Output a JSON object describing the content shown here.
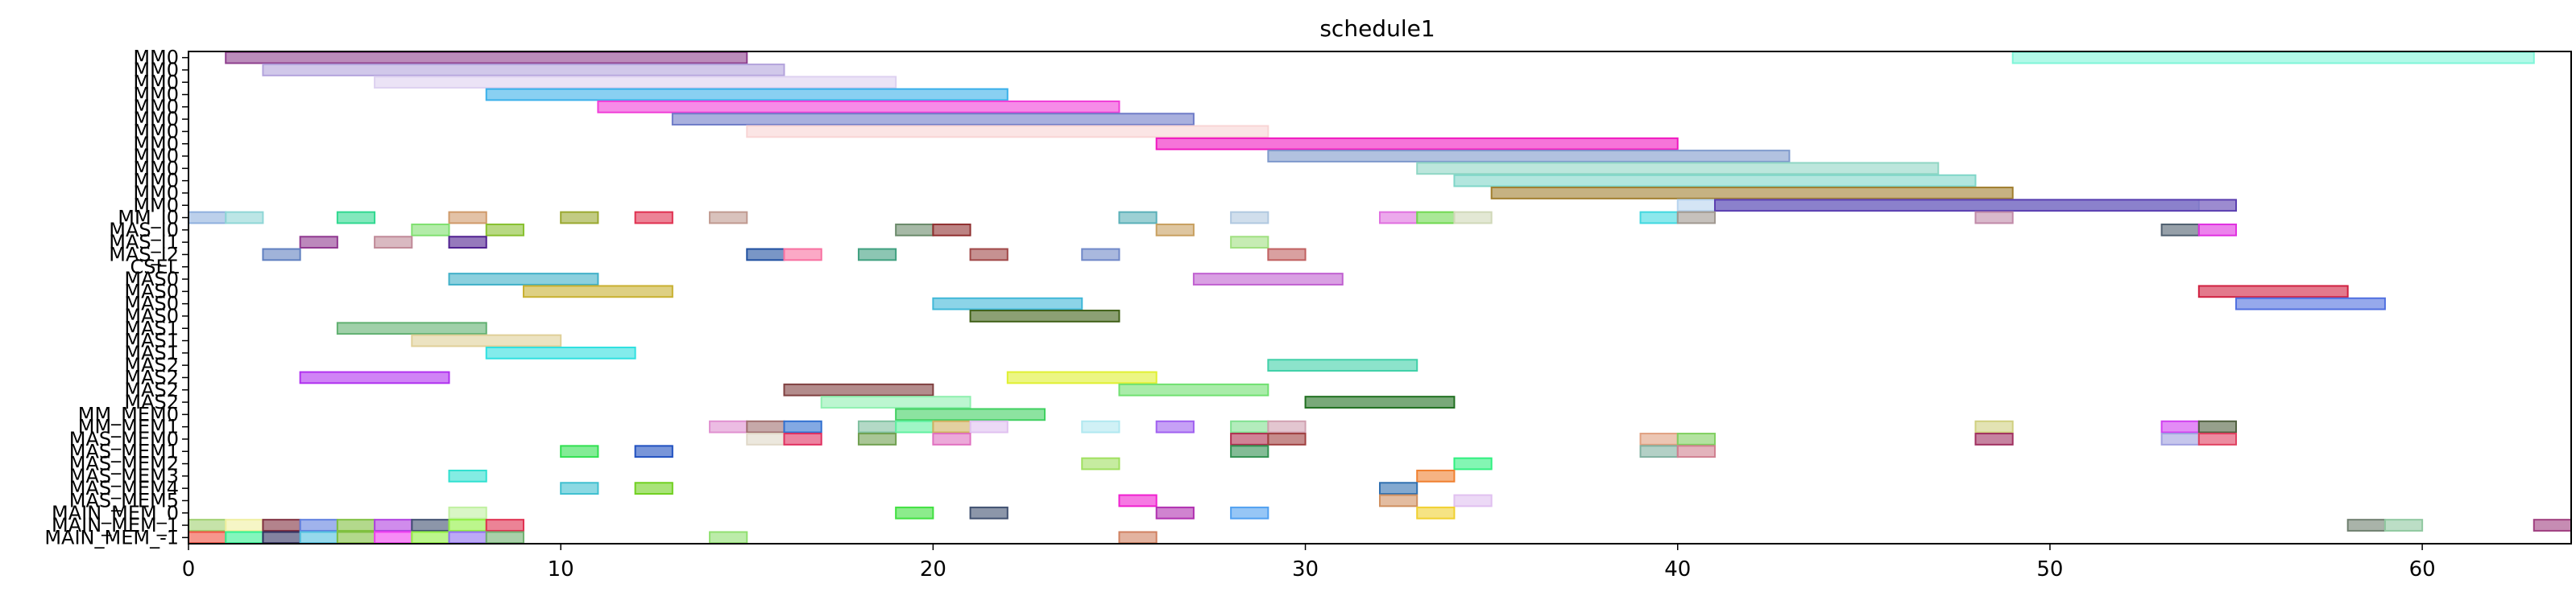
{
  "chart_data": {
    "type": "gantt",
    "title": "schedule1",
    "xlabel": "",
    "ylabel": "",
    "xlim": [
      0,
      64
    ],
    "grid": false,
    "x_ticks": [
      0,
      10,
      20,
      30,
      40,
      50,
      60
    ],
    "rows": [
      "MM0",
      "MM0",
      "MM0",
      "MM0",
      "MM0",
      "MM0",
      "MM0",
      "MM0",
      "MM0",
      "MM0",
      "MM0",
      "MM0",
      "MM0",
      "MM_I0",
      "MAS_I0",
      "MAS_I1",
      "MAS_I2",
      "CSEL",
      "MAS0",
      "MAS0",
      "MAS0",
      "MAS0",
      "MAS1",
      "MAS1",
      "MAS1",
      "MAS2",
      "MAS2",
      "MAS2",
      "MAS2",
      "MM_MEM0",
      "MM_MEM1",
      "MAS_MEM0",
      "MAS_MEM1",
      "MAS_MEM2",
      "MAS_MEM3",
      "MAS_MEM4",
      "MAS_MEM5",
      "MAIN_MEM_0",
      "MAIN_MEM_1",
      "MAIN_MEM_-1"
    ],
    "bars": [
      {
        "row": 0,
        "start": 1,
        "end": 15,
        "color": "#8e3f8e"
      },
      {
        "row": 0,
        "start": 49,
        "end": 63,
        "color": "#7ff5d8"
      },
      {
        "row": 1,
        "start": 2,
        "end": 16,
        "color": "#b3a3dc"
      },
      {
        "row": 2,
        "start": 5,
        "end": 19,
        "color": "#ddd1f0"
      },
      {
        "row": 3,
        "start": 8,
        "end": 22,
        "color": "#3ab0ea"
      },
      {
        "row": 4,
        "start": 11,
        "end": 25,
        "color": "#f03ed8"
      },
      {
        "row": 5,
        "start": 13,
        "end": 27,
        "color": "#6f7cc8"
      },
      {
        "row": 6,
        "start": 15,
        "end": 29,
        "color": "#f8d4d4"
      },
      {
        "row": 7,
        "start": 26,
        "end": 40,
        "color": "#f018c0"
      },
      {
        "row": 8,
        "start": 29,
        "end": 43,
        "color": "#7f9acc"
      },
      {
        "row": 9,
        "start": 33,
        "end": 47,
        "color": "#8fd6c4"
      },
      {
        "row": 10,
        "start": 34,
        "end": 48,
        "color": "#7fd6c8"
      },
      {
        "row": 11,
        "start": 35,
        "end": 49,
        "color": "#a07e2e"
      },
      {
        "row": 12,
        "start": 40,
        "end": 54,
        "color": "#b8d4ee"
      },
      {
        "row": 12,
        "start": 41,
        "end": 55,
        "color": "#5a3eb0"
      },
      {
        "row": 13,
        "start": 0,
        "end": 1,
        "color": "#8fb0de"
      },
      {
        "row": 13,
        "start": 1,
        "end": 2,
        "color": "#8fd6d6"
      },
      {
        "row": 13,
        "start": 4,
        "end": 5,
        "color": "#30d890"
      },
      {
        "row": 13,
        "start": 7,
        "end": 8,
        "color": "#d09a6a"
      },
      {
        "row": 13,
        "start": 10,
        "end": 11,
        "color": "#9aa830"
      },
      {
        "row": 13,
        "start": 12,
        "end": 13,
        "color": "#e03050"
      },
      {
        "row": 13,
        "start": 14,
        "end": 15,
        "color": "#c09a90"
      },
      {
        "row": 13,
        "start": 25,
        "end": 26,
        "color": "#5ab0b8"
      },
      {
        "row": 13,
        "start": 28,
        "end": 29,
        "color": "#b0c8e0"
      },
      {
        "row": 13,
        "start": 32,
        "end": 33,
        "color": "#e070e0"
      },
      {
        "row": 13,
        "start": 33,
        "end": 34,
        "color": "#70d850"
      },
      {
        "row": 13,
        "start": 34,
        "end": 35,
        "color": "#d0d8b8"
      },
      {
        "row": 13,
        "start": 39,
        "end": 40,
        "color": "#40d8e0"
      },
      {
        "row": 13,
        "start": 40,
        "end": 41,
        "color": "#a09890"
      },
      {
        "row": 13,
        "start": 48,
        "end": 49,
        "color": "#c08aa8"
      },
      {
        "row": 14,
        "start": 6,
        "end": 7,
        "color": "#80e070"
      },
      {
        "row": 14,
        "start": 8,
        "end": 9,
        "color": "#88c030"
      },
      {
        "row": 14,
        "start": 19,
        "end": 20,
        "color": "#6a8a6a"
      },
      {
        "row": 14,
        "start": 20,
        "end": 21,
        "color": "#903030"
      },
      {
        "row": 14,
        "start": 26,
        "end": 27,
        "color": "#c8a060"
      },
      {
        "row": 14,
        "start": 53,
        "end": 54,
        "color": "#506070"
      },
      {
        "row": 14,
        "start": 54,
        "end": 55,
        "color": "#e030e0"
      },
      {
        "row": 15,
        "start": 3,
        "end": 4,
        "color": "#903890"
      },
      {
        "row": 15,
        "start": 5,
        "end": 6,
        "color": "#c08a98"
      },
      {
        "row": 15,
        "start": 7,
        "end": 8,
        "color": "#502090"
      },
      {
        "row": 15,
        "start": 28,
        "end": 29,
        "color": "#a0e080"
      },
      {
        "row": 16,
        "start": 2,
        "end": 3,
        "color": "#6080c0"
      },
      {
        "row": 16,
        "start": 15,
        "end": 16,
        "color": "#2050a0"
      },
      {
        "row": 16,
        "start": 16,
        "end": 17,
        "color": "#f870a0"
      },
      {
        "row": 16,
        "start": 18,
        "end": 19,
        "color": "#40a080"
      },
      {
        "row": 16,
        "start": 21,
        "end": 22,
        "color": "#a04848"
      },
      {
        "row": 16,
        "start": 24,
        "end": 25,
        "color": "#7088c8"
      },
      {
        "row": 16,
        "start": 29,
        "end": 30,
        "color": "#c06060"
      },
      {
        "row": 18,
        "start": 7,
        "end": 11,
        "color": "#40b0c8"
      },
      {
        "row": 18,
        "start": 27,
        "end": 31,
        "color": "#c060d0"
      },
      {
        "row": 19,
        "start": 9,
        "end": 13,
        "color": "#c8b030"
      },
      {
        "row": 19,
        "start": 54,
        "end": 58,
        "color": "#d02040"
      },
      {
        "row": 20,
        "start": 20,
        "end": 24,
        "color": "#40b8d8"
      },
      {
        "row": 20,
        "start": 55,
        "end": 59,
        "color": "#5070e0"
      },
      {
        "row": 21,
        "start": 21,
        "end": 25,
        "color": "#406018"
      },
      {
        "row": 22,
        "start": 4,
        "end": 8,
        "color": "#60b070"
      },
      {
        "row": 23,
        "start": 6,
        "end": 10,
        "color": "#e0d098"
      },
      {
        "row": 24,
        "start": 8,
        "end": 12,
        "color": "#30e0e0"
      },
      {
        "row": 25,
        "start": 29,
        "end": 33,
        "color": "#40d0a8"
      },
      {
        "row": 26,
        "start": 3,
        "end": 7,
        "color": "#b030f0"
      },
      {
        "row": 26,
        "start": 22,
        "end": 26,
        "color": "#e0f030"
      },
      {
        "row": 27,
        "start": 16,
        "end": 20,
        "color": "#804040"
      },
      {
        "row": 27,
        "start": 25,
        "end": 29,
        "color": "#70e070"
      },
      {
        "row": 28,
        "start": 17,
        "end": 21,
        "color": "#90f0b0"
      },
      {
        "row": 28,
        "start": 30,
        "end": 34,
        "color": "#207020"
      },
      {
        "row": 29,
        "start": 19,
        "end": 23,
        "color": "#40d060"
      },
      {
        "row": 30,
        "start": 14,
        "end": 15,
        "color": "#e090d0"
      },
      {
        "row": 30,
        "start": 15,
        "end": 16,
        "color": "#a07070"
      },
      {
        "row": 30,
        "start": 16,
        "end": 17,
        "color": "#3070d0"
      },
      {
        "row": 30,
        "start": 18,
        "end": 19,
        "color": "#80c0a0"
      },
      {
        "row": 30,
        "start": 19,
        "end": 20,
        "color": "#60f0a0"
      },
      {
        "row": 30,
        "start": 20,
        "end": 21,
        "color": "#d0b060"
      },
      {
        "row": 30,
        "start": 21,
        "end": 22,
        "color": "#e0c0f0"
      },
      {
        "row": 30,
        "start": 24,
        "end": 25,
        "color": "#b0e8f0"
      },
      {
        "row": 30,
        "start": 26,
        "end": 27,
        "color": "#a060f0"
      },
      {
        "row": 30,
        "start": 28,
        "end": 29,
        "color": "#80e090"
      },
      {
        "row": 30,
        "start": 29,
        "end": 30,
        "color": "#d0a0b0"
      },
      {
        "row": 30,
        "start": 48,
        "end": 49,
        "color": "#d0d080"
      },
      {
        "row": 30,
        "start": 53,
        "end": 54,
        "color": "#d040f0"
      },
      {
        "row": 30,
        "start": 54,
        "end": 55,
        "color": "#506040"
      },
      {
        "row": 31,
        "start": 15,
        "end": 16,
        "color": "#e0d8c8"
      },
      {
        "row": 31,
        "start": 16,
        "end": 17,
        "color": "#e03060"
      },
      {
        "row": 31,
        "start": 18,
        "end": 19,
        "color": "#70a050"
      },
      {
        "row": 31,
        "start": 20,
        "end": 21,
        "color": "#e070c0"
      },
      {
        "row": 31,
        "start": 28,
        "end": 29,
        "color": "#b03050"
      },
      {
        "row": 31,
        "start": 29,
        "end": 30,
        "color": "#a04040"
      },
      {
        "row": 31,
        "start": 39,
        "end": 40,
        "color": "#e0a080"
      },
      {
        "row": 31,
        "start": 40,
        "end": 41,
        "color": "#80d060"
      },
      {
        "row": 31,
        "start": 48,
        "end": 49,
        "color": "#a03060"
      },
      {
        "row": 31,
        "start": 53,
        "end": 54,
        "color": "#a0a0e0"
      },
      {
        "row": 31,
        "start": 54,
        "end": 55,
        "color": "#e04060"
      },
      {
        "row": 32,
        "start": 10,
        "end": 11,
        "color": "#30e050"
      },
      {
        "row": 32,
        "start": 12,
        "end": 13,
        "color": "#2050c0"
      },
      {
        "row": 32,
        "start": 28,
        "end": 29,
        "color": "#309050"
      },
      {
        "row": 32,
        "start": 39,
        "end": 40,
        "color": "#80b0a0"
      },
      {
        "row": 32,
        "start": 40,
        "end": 41,
        "color": "#d08090"
      },
      {
        "row": 33,
        "start": 24,
        "end": 25,
        "color": "#a0e060"
      },
      {
        "row": 33,
        "start": 34,
        "end": 35,
        "color": "#30f080"
      },
      {
        "row": 34,
        "start": 7,
        "end": 8,
        "color": "#30e0d0"
      },
      {
        "row": 34,
        "start": 33,
        "end": 34,
        "color": "#f08030"
      },
      {
        "row": 35,
        "start": 10,
        "end": 11,
        "color": "#40c0d0"
      },
      {
        "row": 35,
        "start": 12,
        "end": 13,
        "color": "#70d020"
      },
      {
        "row": 35,
        "start": 32,
        "end": 33,
        "color": "#3070b0"
      },
      {
        "row": 36,
        "start": 25,
        "end": 26,
        "color": "#f020d0"
      },
      {
        "row": 36,
        "start": 32,
        "end": 33,
        "color": "#d09060"
      },
      {
        "row": 36,
        "start": 34,
        "end": 35,
        "color": "#e0c0f0"
      },
      {
        "row": 37,
        "start": 19,
        "end": 20,
        "color": "#40e040"
      },
      {
        "row": 37,
        "start": 21,
        "end": 22,
        "color": "#405070"
      },
      {
        "row": 37,
        "start": 26,
        "end": 27,
        "color": "#b030b0"
      },
      {
        "row": 37,
        "start": 28,
        "end": 29,
        "color": "#50a0f0"
      },
      {
        "row": 37,
        "start": 33,
        "end": 34,
        "color": "#f0d030"
      },
      {
        "row": 37,
        "start": 7,
        "end": 8,
        "color": "#c0f0a0"
      },
      {
        "row": 38,
        "start": 58,
        "end": 59,
        "color": "#708070"
      },
      {
        "row": 38,
        "start": 59,
        "end": 60,
        "color": "#90c8a0"
      },
      {
        "row": 38,
        "start": 63,
        "end": 64,
        "color": "#a04080"
      },
      {
        "row": 38,
        "start": 0,
        "end": 1,
        "color": "#a0d070"
      },
      {
        "row": 38,
        "start": 1,
        "end": 2,
        "color": "#f0f0a0"
      },
      {
        "row": 38,
        "start": 2,
        "end": 3,
        "color": "#803040"
      },
      {
        "row": 38,
        "start": 3,
        "end": 4,
        "color": "#6080e0"
      },
      {
        "row": 38,
        "start": 4,
        "end": 5,
        "color": "#80c040"
      },
      {
        "row": 38,
        "start": 5,
        "end": 6,
        "color": "#b040e0"
      },
      {
        "row": 38,
        "start": 6,
        "end": 7,
        "color": "#405070"
      },
      {
        "row": 38,
        "start": 7,
        "end": 8,
        "color": "#90f040"
      },
      {
        "row": 38,
        "start": 8,
        "end": 9,
        "color": "#e03050"
      },
      {
        "row": 39,
        "start": 0,
        "end": 1,
        "color": "#f05040"
      },
      {
        "row": 39,
        "start": 1,
        "end": 2,
        "color": "#30f090"
      },
      {
        "row": 39,
        "start": 2,
        "end": 3,
        "color": "#303060"
      },
      {
        "row": 39,
        "start": 3,
        "end": 4,
        "color": "#50c0e0"
      },
      {
        "row": 39,
        "start": 4,
        "end": 5,
        "color": "#80c040"
      },
      {
        "row": 39,
        "start": 5,
        "end": 6,
        "color": "#f040f0"
      },
      {
        "row": 39,
        "start": 6,
        "end": 7,
        "color": "#90f040"
      },
      {
        "row": 39,
        "start": 7,
        "end": 8,
        "color": "#9070f0"
      },
      {
        "row": 39,
        "start": 8,
        "end": 9,
        "color": "#70b070"
      },
      {
        "row": 39,
        "start": 14,
        "end": 15,
        "color": "#90e070"
      },
      {
        "row": 39,
        "start": 25,
        "end": 26,
        "color": "#d08060"
      }
    ]
  }
}
